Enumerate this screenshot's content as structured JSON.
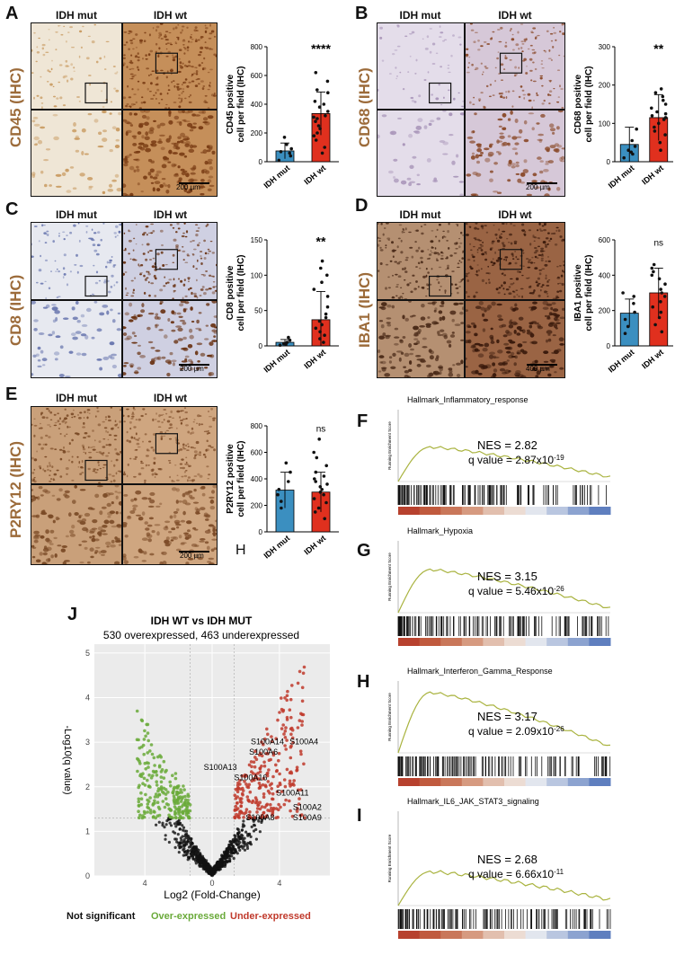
{
  "panels": {
    "A": {
      "letter": "A",
      "stain": "CD45 (IHC)",
      "left": "IDH mut",
      "right": "IDH wt",
      "scale": "200 µm"
    },
    "B": {
      "letter": "B",
      "stain": "CD68 (IHC)",
      "left": "IDH mut",
      "right": "IDH wt",
      "scale": "200 µm"
    },
    "C": {
      "letter": "C",
      "stain": "CD8 (IHC)",
      "left": "IDH mut",
      "right": "IDH wt",
      "scale": "200 µm"
    },
    "D": {
      "letter": "D",
      "stain": "IBA1 (IHC)",
      "left": "IDH mut",
      "right": "IDH wt",
      "scale": "400 µm"
    },
    "E": {
      "letter": "E",
      "stain": "P2RY12 (IHC)",
      "left": "IDH mut",
      "right": "IDH wt",
      "scale": "200 µm"
    }
  },
  "extra_label_H": "H",
  "chart_data": [
    {
      "id": "A",
      "type": "bar",
      "ylabel": [
        "CD45 positive",
        "cell per field (IHC)"
      ],
      "categories": [
        "IDH mut",
        "IDH wt"
      ],
      "values": [
        75,
        335
      ],
      "errors": [
        55,
        150
      ],
      "ylim": [
        0,
        800
      ],
      "yticks": [
        0,
        200,
        400,
        600,
        800
      ],
      "sig": "****",
      "points": [
        [
          10,
          40,
          60,
          70,
          90,
          120,
          170
        ],
        [
          60,
          100,
          150,
          180,
          200,
          230,
          250,
          280,
          300,
          310,
          320,
          350,
          380,
          400,
          420,
          480,
          500,
          560,
          620
        ]
      ],
      "colors": [
        "#3b8fc0",
        "#e0301e"
      ]
    },
    {
      "id": "B",
      "type": "bar",
      "ylabel": [
        "CD68 positive",
        "cell per field (IHC)"
      ],
      "categories": [
        "IDH mut",
        "IDH wt"
      ],
      "values": [
        45,
        115
      ],
      "errors": [
        45,
        60
      ],
      "ylim": [
        0,
        300
      ],
      "yticks": [
        0,
        100,
        200,
        300
      ],
      "sig": "**",
      "points": [
        [
          10,
          20,
          25,
          30,
          40,
          55,
          85
        ],
        [
          30,
          50,
          70,
          80,
          90,
          100,
          110,
          115,
          120,
          125,
          130,
          140,
          150,
          160,
          170,
          180,
          190
        ]
      ],
      "colors": [
        "#3b8fc0",
        "#e0301e"
      ]
    },
    {
      "id": "C",
      "type": "bar",
      "ylabel": [
        "CD8 positive",
        "cell per field (IHC)"
      ],
      "categories": [
        "IDH mut",
        "IDH wt"
      ],
      "values": [
        5,
        37
      ],
      "errors": [
        4,
        40
      ],
      "ylim": [
        0,
        150
      ],
      "yticks": [
        0,
        50,
        100,
        150
      ],
      "sig": "**",
      "points": [
        [
          1,
          2,
          3,
          5,
          8,
          12
        ],
        [
          5,
          10,
          15,
          20,
          25,
          30,
          35,
          40,
          45,
          55,
          70,
          80,
          90,
          100,
          110,
          120
        ]
      ],
      "colors": [
        "#3b8fc0",
        "#e0301e"
      ]
    },
    {
      "id": "D",
      "type": "bar",
      "ylabel": [
        "IBA1 positive",
        "cell per field (IHC)"
      ],
      "categories": [
        "IDH mut",
        "IDH wt"
      ],
      "values": [
        185,
        300
      ],
      "errors": [
        80,
        140
      ],
      "ylim": [
        0,
        600
      ],
      "yticks": [
        0,
        200,
        400,
        600
      ],
      "sig": "ns",
      "points": [
        [
          70,
          110,
          150,
          190,
          240,
          280,
          300
        ],
        [
          80,
          120,
          160,
          190,
          220,
          250,
          280,
          300,
          320,
          350,
          380,
          400,
          420,
          440,
          460
        ]
      ],
      "colors": [
        "#3b8fc0",
        "#e0301e"
      ]
    },
    {
      "id": "E",
      "type": "bar",
      "ylabel": [
        "P2RY12 positive",
        "cell per field (IHC)"
      ],
      "categories": [
        "IDH mut",
        "IDH wt"
      ],
      "values": [
        315,
        300
      ],
      "errors": [
        135,
        150
      ],
      "ylim": [
        0,
        800
      ],
      "yticks": [
        0,
        200,
        400,
        600,
        800
      ],
      "sig": "ns",
      "points": [
        [
          180,
          230,
          280,
          320,
          380,
          450,
          520
        ],
        [
          100,
          150,
          180,
          220,
          250,
          280,
          300,
          320,
          340,
          360,
          380,
          400,
          420,
          450,
          500,
          560,
          600,
          700
        ]
      ],
      "colors": [
        "#3b8fc0",
        "#e0301e"
      ]
    },
    {
      "id": "F",
      "type": "line",
      "title": "Hallmark_Inflammatory_response",
      "ylabel": "Running Enrichment Score",
      "nes": "NES = 2.82",
      "q": "q value = 2.87x10",
      "qexp": "-19",
      "peak": 0.16,
      "endval": 0.02
    },
    {
      "id": "G",
      "type": "line",
      "title": "Hallmark_Hypoxia",
      "ylabel": "Running Enrichment Score",
      "nes": "NES = 3.15",
      "q": "q value = 5.46x10",
      "qexp": "-26",
      "peak": 0.2,
      "endval": 0.02
    },
    {
      "id": "H",
      "type": "line",
      "title": "Hallmark_Interferon_Gamma_Response",
      "ylabel": "Running Enrichment Score",
      "nes": "NES = 3.17",
      "q": "q value = 2.09x10",
      "qexp": "-26",
      "peak": 0.28,
      "endval": 0.03
    },
    {
      "id": "I",
      "type": "line",
      "title": "Hallmark_IL6_JAK_STAT3_signaling",
      "ylabel": "Running Enrichment Score",
      "nes": "NES = 2.68",
      "q": "q value = 6.66x10",
      "qexp": "-11",
      "peak": 0.12,
      "endval": 0.02
    },
    {
      "id": "J",
      "type": "scatter",
      "title": "IDH WT vs IDH MUT",
      "subtitle": "530 overexpressed, 463 underexpressed",
      "xlabel": "Log2 (Fold-Change)",
      "ylabel": "-Log10(q value)",
      "xlim": [
        -7,
        7
      ],
      "ylim": [
        0,
        5.2
      ],
      "xticks": [
        -4,
        0,
        4
      ],
      "xticklabels": [
        "4",
        "0",
        "4"
      ],
      "yticks": [
        0,
        1,
        2,
        3,
        4,
        5
      ],
      "labels": [
        {
          "text": "S100A14",
          "x": 2.3,
          "y": 2.95
        },
        {
          "text": "S100A6",
          "x": 2.2,
          "y": 2.72
        },
        {
          "text": "S100A4",
          "x": 4.6,
          "y": 2.95
        },
        {
          "text": "S100A13",
          "x": -0.5,
          "y": 2.38
        },
        {
          "text": "S100A16",
          "x": 1.3,
          "y": 2.15
        },
        {
          "text": "S100A11",
          "x": 3.8,
          "y": 1.8
        },
        {
          "text": "S100A2",
          "x": 4.8,
          "y": 1.48
        },
        {
          "text": "S100A8",
          "x": 2.0,
          "y": 1.25
        },
        {
          "text": "S100A9",
          "x": 4.8,
          "y": 1.25
        }
      ],
      "legend": [
        {
          "text": "Not significant",
          "color": "#111111"
        },
        {
          "text": "Over-expressed",
          "color": "#6aaa3a"
        },
        {
          "text": "Under-expressed",
          "color": "#c0392b"
        }
      ]
    }
  ],
  "panel_letters": {
    "F": "F",
    "G": "G",
    "H": "H",
    "I": "I",
    "J": "J"
  }
}
